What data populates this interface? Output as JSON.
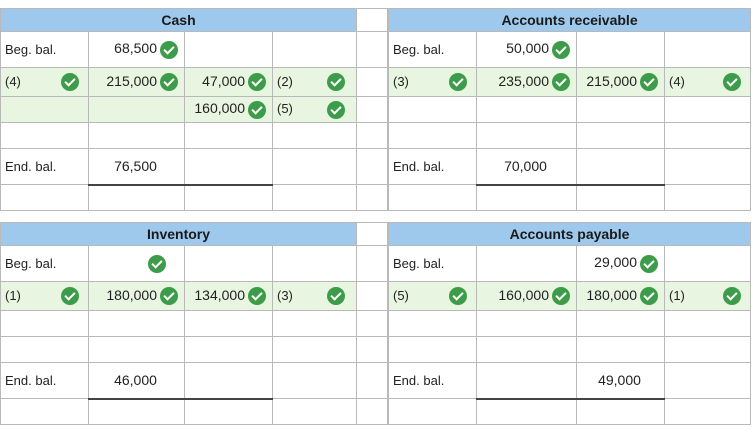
{
  "cash": {
    "title": "Cash",
    "beg_label": "Beg. bal.",
    "beg_debit": "68,500",
    "row1_ref": "(4)",
    "row1_debit": "215,000",
    "row1_credit": "47,000",
    "row1_cref": "(2)",
    "row2_credit": "160,000",
    "row2_cref": "(5)",
    "end_label": "End. bal.",
    "end_debit": "76,500"
  },
  "ar": {
    "title": "Accounts receivable",
    "beg_label": "Beg. bal.",
    "beg_debit": "50,000",
    "row1_ref": "(3)",
    "row1_debit": "235,000",
    "row1_credit": "215,000",
    "row1_cref": "(4)",
    "end_label": "End. bal.",
    "end_debit": "70,000"
  },
  "inventory": {
    "title": "Inventory",
    "beg_label": "Beg. bal.",
    "row1_ref": "(1)",
    "row1_debit": "180,000",
    "row1_credit": "134,000",
    "row1_cref": "(3)",
    "end_label": "End. bal.",
    "end_debit": "46,000"
  },
  "ap": {
    "title": "Accounts payable",
    "beg_label": "Beg. bal.",
    "beg_credit": "29,000",
    "row1_ref": "(5)",
    "row1_debit": "160,000",
    "row1_credit": "180,000",
    "row1_cref": "(1)",
    "end_label": "End. bal.",
    "end_credit": "49,000"
  },
  "colors": {
    "header_bg": "#9ec8ec",
    "row_band": "#e8f5e1",
    "check_green": "#3d9c4a"
  },
  "icons": {
    "check": "check-circle-icon"
  }
}
